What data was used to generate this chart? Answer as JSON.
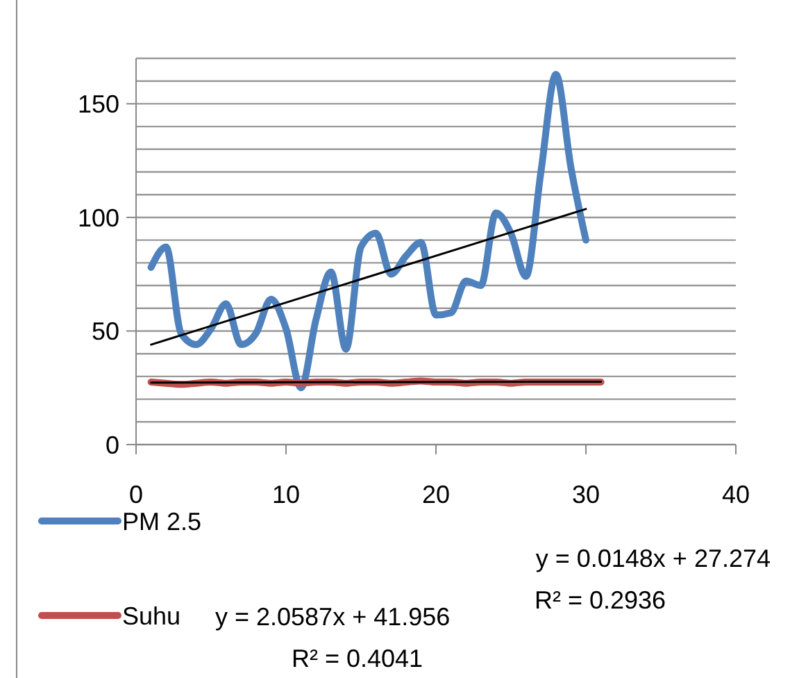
{
  "chart_data": {
    "type": "line",
    "x": [
      1,
      2,
      3,
      4,
      5,
      6,
      7,
      8,
      9,
      10,
      11,
      12,
      13,
      14,
      15,
      16,
      17,
      18,
      19,
      20,
      21,
      22,
      23,
      24,
      25,
      26,
      27,
      28,
      29,
      30
    ],
    "series": [
      {
        "name": "PM 2.5",
        "color": "#4f81bd",
        "values": [
          78,
          87,
          49,
          44,
          51,
          62,
          44,
          49,
          64,
          51,
          25,
          55,
          76,
          42,
          87,
          93,
          75,
          83,
          89,
          57,
          58,
          72,
          70,
          102,
          93,
          74,
          120,
          163,
          122,
          90
        ]
      },
      {
        "name": "Suhu",
        "color": "#c0504d",
        "x": [
          1,
          2,
          3,
          4,
          5,
          6,
          7,
          8,
          9,
          10,
          11,
          12,
          13,
          14,
          15,
          16,
          17,
          18,
          19,
          20,
          21,
          22,
          23,
          24,
          25,
          26,
          27,
          28,
          29,
          30,
          31
        ],
        "values": [
          27.5,
          27,
          26.5,
          27,
          27.5,
          27,
          27.5,
          27.5,
          27,
          27.5,
          27,
          27.5,
          27.5,
          27,
          27.5,
          27.5,
          27,
          27.5,
          28,
          27.5,
          27.5,
          27,
          27.5,
          27.5,
          27,
          27.5,
          27.5,
          27.5,
          27.5,
          27.5,
          27.5
        ]
      },
      {
        "type": "line",
        "color": "#000000",
        "x": [
          1,
          30
        ],
        "values": [
          44.0,
          103.7
        ]
      },
      {
        "type": "line",
        "color": "#000000",
        "x": [
          1,
          31
        ],
        "values": [
          27.3,
          27.7
        ]
      }
    ],
    "xlim": [
      0,
      40
    ],
    "xticks": [
      0,
      10,
      20,
      30,
      40
    ],
    "ylim": [
      0,
      170
    ],
    "yticks": [
      0,
      {
        "value": 10,
        "label": null
      },
      {
        "value": 20,
        "label": null
      },
      {
        "value": 30,
        "label": null
      },
      {
        "value": 40,
        "label": null
      },
      50,
      {
        "value": 60,
        "label": null
      },
      {
        "value": 70,
        "label": null
      },
      {
        "value": 80,
        "label": null
      },
      {
        "value": 90,
        "label": null
      },
      100,
      {
        "value": 110,
        "label": null
      },
      {
        "value": 120,
        "label": null
      },
      {
        "value": 130,
        "label": null
      },
      {
        "value": 140,
        "label": null
      },
      150,
      {
        "value": 160,
        "label": null
      },
      {
        "value": 170,
        "label": null
      }
    ],
    "grid": "y",
    "legend": "bottom left",
    "marker": "none",
    "line_style": "solid",
    "annotations": [
      "y = 0.0148x + 27.274",
      "R² = 0.2936",
      "y = 2.0587x + 41.956",
      "R² = 0.4041"
    ]
  }
}
